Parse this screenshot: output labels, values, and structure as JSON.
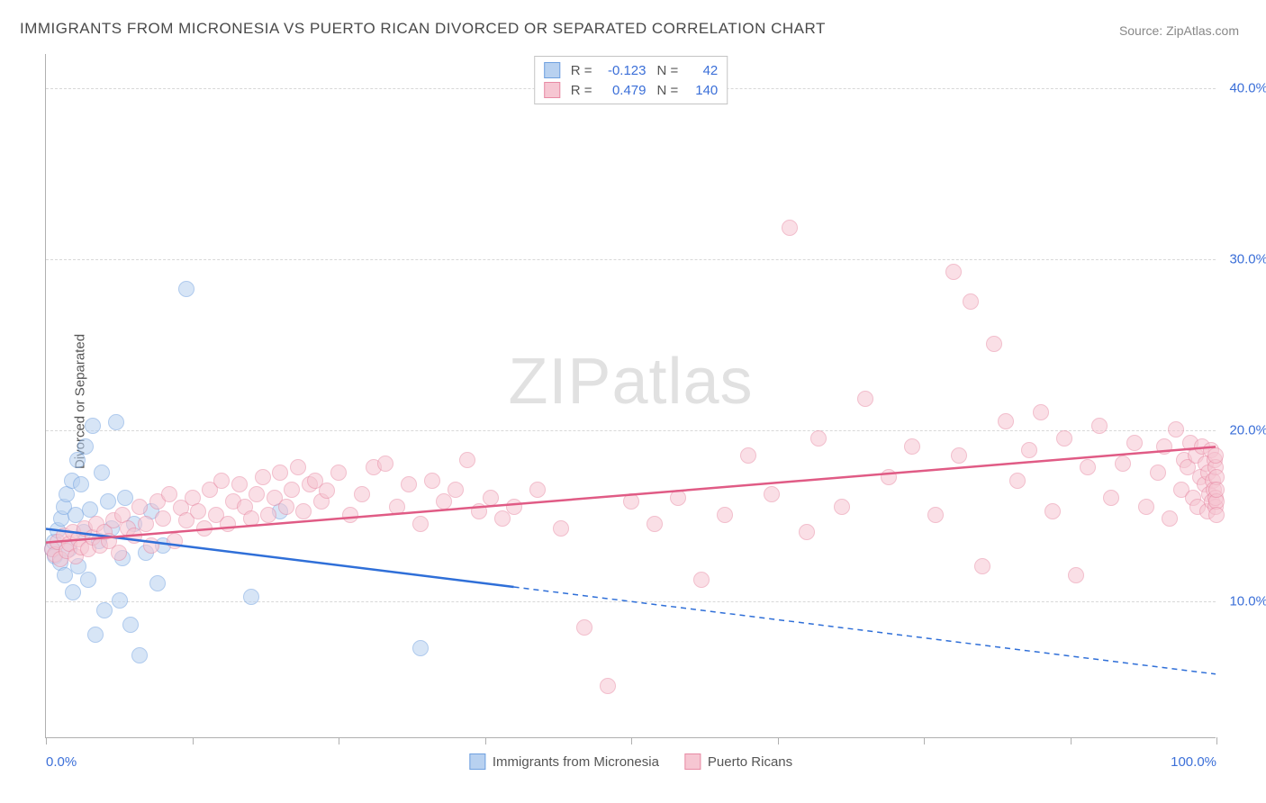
{
  "title": "IMMIGRANTS FROM MICRONESIA VS PUERTO RICAN DIVORCED OR SEPARATED CORRELATION CHART",
  "source_label": "Source: ",
  "source_name": "ZipAtlas.com",
  "watermark_a": "ZIP",
  "watermark_b": "atlas",
  "y_axis_label": "Divorced or Separated",
  "chart": {
    "type": "scatter",
    "xlim": [
      0,
      100
    ],
    "ylim": [
      2,
      42
    ],
    "y_ticks": [
      10,
      20,
      30,
      40
    ],
    "y_tick_labels": [
      "10.0%",
      "20.0%",
      "30.0%",
      "40.0%"
    ],
    "x_tick_positions": [
      0,
      12.5,
      25,
      37.5,
      50,
      62.5,
      75,
      87.5,
      100
    ],
    "x_tick_labels": {
      "0": "0.0%",
      "100": "100.0%"
    },
    "background_color": "#ffffff",
    "grid_color": "#d8d8d8",
    "axis_color": "#b0b0b0",
    "tick_label_color": "#3b6fd8",
    "point_radius": 9,
    "point_opacity": 0.55,
    "series": [
      {
        "name": "Immigrants from Micronesia",
        "short": "micronesia",
        "fill": "#b8d1f0",
        "stroke": "#6fa0e0",
        "line_color": "#2f6fd8",
        "r_label": "R =",
        "r_value": "-0.123",
        "n_label": "N =",
        "n_value": "42",
        "trend": {
          "x1": 0,
          "y1": 14.2,
          "x2_solid": 40,
          "y2_solid": 10.8,
          "x2": 100,
          "y2": 5.7
        },
        "points": [
          [
            0.5,
            13.0
          ],
          [
            0.7,
            13.4
          ],
          [
            0.8,
            12.6
          ],
          [
            1.0,
            14.1
          ],
          [
            1.2,
            12.2
          ],
          [
            1.3,
            14.8
          ],
          [
            1.5,
            15.5
          ],
          [
            1.6,
            11.5
          ],
          [
            1.8,
            16.2
          ],
          [
            2.0,
            13.0
          ],
          [
            2.2,
            17.0
          ],
          [
            2.3,
            10.5
          ],
          [
            2.5,
            15.0
          ],
          [
            2.7,
            18.2
          ],
          [
            2.8,
            12.0
          ],
          [
            3.0,
            16.8
          ],
          [
            3.2,
            14.0
          ],
          [
            3.4,
            19.0
          ],
          [
            3.6,
            11.2
          ],
          [
            3.8,
            15.3
          ],
          [
            4.0,
            20.2
          ],
          [
            4.2,
            8.0
          ],
          [
            4.5,
            13.5
          ],
          [
            4.8,
            17.5
          ],
          [
            5.0,
            9.4
          ],
          [
            5.3,
            15.8
          ],
          [
            5.6,
            14.2
          ],
          [
            6.0,
            20.4
          ],
          [
            6.3,
            10.0
          ],
          [
            6.5,
            12.5
          ],
          [
            6.8,
            16.0
          ],
          [
            7.2,
            8.6
          ],
          [
            7.5,
            14.5
          ],
          [
            8.0,
            6.8
          ],
          [
            8.5,
            12.8
          ],
          [
            9.0,
            15.2
          ],
          [
            9.5,
            11.0
          ],
          [
            10.0,
            13.2
          ],
          [
            12.0,
            28.2
          ],
          [
            17.5,
            10.2
          ],
          [
            20.0,
            15.2
          ],
          [
            32.0,
            7.2
          ]
        ]
      },
      {
        "name": "Puerto Ricans",
        "short": "puerto-ricans",
        "fill": "#f6c6d2",
        "stroke": "#e88aa4",
        "line_color": "#e05b85",
        "r_label": "R =",
        "r_value": "0.479",
        "n_label": "N =",
        "n_value": "140",
        "trend": {
          "x1": 0,
          "y1": 13.4,
          "x2_solid": 100,
          "y2_solid": 19.0,
          "x2": 100,
          "y2": 19.0
        },
        "points": [
          [
            0.5,
            13.0
          ],
          [
            0.8,
            12.7
          ],
          [
            1.0,
            13.4
          ],
          [
            1.2,
            12.4
          ],
          [
            1.5,
            13.8
          ],
          [
            1.8,
            12.9
          ],
          [
            2.0,
            13.3
          ],
          [
            2.3,
            14.0
          ],
          [
            2.5,
            12.6
          ],
          [
            2.8,
            13.6
          ],
          [
            3.0,
            13.1
          ],
          [
            3.3,
            14.2
          ],
          [
            3.6,
            13.0
          ],
          [
            4.0,
            13.7
          ],
          [
            4.3,
            14.5
          ],
          [
            4.6,
            13.2
          ],
          [
            5.0,
            14.0
          ],
          [
            5.4,
            13.5
          ],
          [
            5.8,
            14.7
          ],
          [
            6.2,
            12.8
          ],
          [
            6.5,
            15.0
          ],
          [
            7.0,
            14.2
          ],
          [
            7.5,
            13.8
          ],
          [
            8.0,
            15.5
          ],
          [
            8.5,
            14.5
          ],
          [
            9.0,
            13.2
          ],
          [
            9.5,
            15.8
          ],
          [
            10.0,
            14.8
          ],
          [
            10.5,
            16.2
          ],
          [
            11.0,
            13.5
          ],
          [
            11.5,
            15.4
          ],
          [
            12.0,
            14.7
          ],
          [
            12.5,
            16.0
          ],
          [
            13.0,
            15.2
          ],
          [
            13.5,
            14.2
          ],
          [
            14.0,
            16.5
          ],
          [
            14.5,
            15.0
          ],
          [
            15.0,
            17.0
          ],
          [
            15.5,
            14.5
          ],
          [
            16.0,
            15.8
          ],
          [
            16.5,
            16.8
          ],
          [
            17.0,
            15.5
          ],
          [
            17.5,
            14.8
          ],
          [
            18.0,
            16.2
          ],
          [
            18.5,
            17.2
          ],
          [
            19.0,
            15.0
          ],
          [
            19.5,
            16.0
          ],
          [
            20.0,
            17.5
          ],
          [
            20.5,
            15.5
          ],
          [
            21.0,
            16.5
          ],
          [
            21.5,
            17.8
          ],
          [
            22.0,
            15.2
          ],
          [
            22.5,
            16.8
          ],
          [
            23.0,
            17.0
          ],
          [
            23.5,
            15.8
          ],
          [
            24.0,
            16.4
          ],
          [
            25.0,
            17.5
          ],
          [
            26.0,
            15.0
          ],
          [
            27.0,
            16.2
          ],
          [
            28.0,
            17.8
          ],
          [
            29.0,
            18.0
          ],
          [
            30.0,
            15.5
          ],
          [
            31.0,
            16.8
          ],
          [
            32.0,
            14.5
          ],
          [
            33.0,
            17.0
          ],
          [
            34.0,
            15.8
          ],
          [
            35.0,
            16.5
          ],
          [
            36.0,
            18.2
          ],
          [
            37.0,
            15.2
          ],
          [
            38.0,
            16.0
          ],
          [
            39.0,
            14.8
          ],
          [
            40.0,
            15.5
          ],
          [
            42.0,
            16.5
          ],
          [
            44.0,
            14.2
          ],
          [
            46.0,
            8.4
          ],
          [
            48.0,
            5.0
          ],
          [
            50.0,
            15.8
          ],
          [
            52.0,
            14.5
          ],
          [
            54.0,
            16.0
          ],
          [
            56.0,
            11.2
          ],
          [
            58.0,
            15.0
          ],
          [
            60.0,
            18.5
          ],
          [
            62.0,
            16.2
          ],
          [
            63.5,
            31.8
          ],
          [
            65.0,
            14.0
          ],
          [
            66.0,
            19.5
          ],
          [
            68.0,
            15.5
          ],
          [
            70.0,
            21.8
          ],
          [
            72.0,
            17.2
          ],
          [
            74.0,
            19.0
          ],
          [
            76.0,
            15.0
          ],
          [
            77.5,
            29.2
          ],
          [
            78.0,
            18.5
          ],
          [
            79.0,
            27.5
          ],
          [
            80.0,
            12.0
          ],
          [
            81.0,
            25.0
          ],
          [
            82.0,
            20.5
          ],
          [
            83.0,
            17.0
          ],
          [
            84.0,
            18.8
          ],
          [
            85.0,
            21.0
          ],
          [
            86.0,
            15.2
          ],
          [
            87.0,
            19.5
          ],
          [
            88.0,
            11.5
          ],
          [
            89.0,
            17.8
          ],
          [
            90.0,
            20.2
          ],
          [
            91.0,
            16.0
          ],
          [
            92.0,
            18.0
          ],
          [
            93.0,
            19.2
          ],
          [
            94.0,
            15.5
          ],
          [
            95.0,
            17.5
          ],
          [
            95.5,
            19.0
          ],
          [
            96.0,
            14.8
          ],
          [
            96.5,
            20.0
          ],
          [
            97.0,
            16.5
          ],
          [
            97.2,
            18.2
          ],
          [
            97.5,
            17.8
          ],
          [
            97.8,
            19.2
          ],
          [
            98.0,
            16.0
          ],
          [
            98.2,
            18.5
          ],
          [
            98.4,
            15.5
          ],
          [
            98.6,
            17.2
          ],
          [
            98.8,
            19.0
          ],
          [
            99.0,
            16.8
          ],
          [
            99.1,
            18.0
          ],
          [
            99.2,
            15.2
          ],
          [
            99.3,
            17.5
          ],
          [
            99.4,
            16.2
          ],
          [
            99.5,
            18.8
          ],
          [
            99.6,
            15.8
          ],
          [
            99.7,
            17.0
          ],
          [
            99.8,
            16.5
          ],
          [
            99.85,
            18.2
          ],
          [
            99.9,
            15.5
          ],
          [
            99.92,
            17.8
          ],
          [
            99.94,
            16.0
          ],
          [
            99.96,
            18.5
          ],
          [
            99.97,
            15.8
          ],
          [
            99.98,
            17.2
          ],
          [
            99.99,
            16.5
          ],
          [
            100.0,
            15.0
          ]
        ]
      }
    ]
  },
  "legend_top_rows": [
    0,
    1
  ],
  "legend_bottom_items": [
    0,
    1
  ]
}
